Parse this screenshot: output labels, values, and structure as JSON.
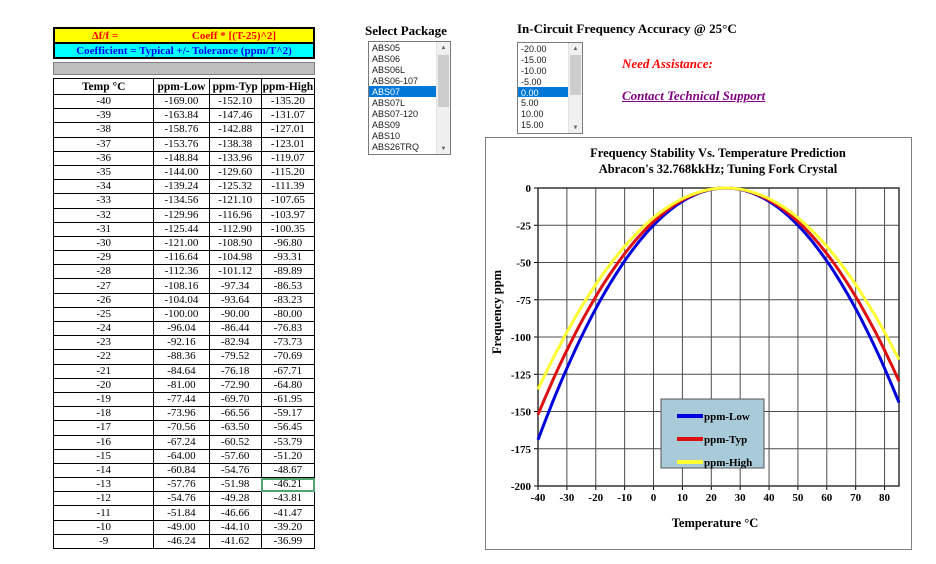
{
  "table": {
    "formula_left": "Δf/f =",
    "formula_right": "Coeff * [(T-25)^2]",
    "coefficient_note": "Coefficient = Typical +/- Tolerance (ppm/T^2)",
    "headers": [
      "Temp °C",
      "ppm-Low",
      "ppm-Typ",
      "ppm-High"
    ],
    "rows": [
      [
        "-40",
        "-169.00",
        "-152.10",
        "-135.20"
      ],
      [
        "-39",
        "-163.84",
        "-147.46",
        "-131.07"
      ],
      [
        "-38",
        "-158.76",
        "-142.88",
        "-127.01"
      ],
      [
        "-37",
        "-153.76",
        "-138.38",
        "-123.01"
      ],
      [
        "-36",
        "-148.84",
        "-133.96",
        "-119.07"
      ],
      [
        "-35",
        "-144.00",
        "-129.60",
        "-115.20"
      ],
      [
        "-34",
        "-139.24",
        "-125.32",
        "-111.39"
      ],
      [
        "-33",
        "-134.56",
        "-121.10",
        "-107.65"
      ],
      [
        "-32",
        "-129.96",
        "-116.96",
        "-103.97"
      ],
      [
        "-31",
        "-125.44",
        "-112.90",
        "-100.35"
      ],
      [
        "-30",
        "-121.00",
        "-108.90",
        "-96.80"
      ],
      [
        "-29",
        "-116.64",
        "-104.98",
        "-93.31"
      ],
      [
        "-28",
        "-112.36",
        "-101.12",
        "-89.89"
      ],
      [
        "-27",
        "-108.16",
        "-97.34",
        "-86.53"
      ],
      [
        "-26",
        "-104.04",
        "-93.64",
        "-83.23"
      ],
      [
        "-25",
        "-100.00",
        "-90.00",
        "-80.00"
      ],
      [
        "-24",
        "-96.04",
        "-86.44",
        "-76.83"
      ],
      [
        "-23",
        "-92.16",
        "-82.94",
        "-73.73"
      ],
      [
        "-22",
        "-88.36",
        "-79.52",
        "-70.69"
      ],
      [
        "-21",
        "-84.64",
        "-76.18",
        "-67.71"
      ],
      [
        "-20",
        "-81.00",
        "-72.90",
        "-64.80"
      ],
      [
        "-19",
        "-77.44",
        "-69.70",
        "-61.95"
      ],
      [
        "-18",
        "-73.96",
        "-66.56",
        "-59.17"
      ],
      [
        "-17",
        "-70.56",
        "-63.50",
        "-56.45"
      ],
      [
        "-16",
        "-67.24",
        "-60.52",
        "-53.79"
      ],
      [
        "-15",
        "-64.00",
        "-57.60",
        "-51.20"
      ],
      [
        "-14",
        "-60.84",
        "-54.76",
        "-48.67"
      ],
      [
        "-13",
        "-57.76",
        "-51.98",
        "-46.21"
      ],
      [
        "-12",
        "-54.76",
        "-49.28",
        "-43.81"
      ],
      [
        "-11",
        "-51.84",
        "-46.66",
        "-41.47"
      ],
      [
        "-10",
        "-49.00",
        "-44.10",
        "-39.20"
      ],
      [
        "-9",
        "-46.24",
        "-41.62",
        "-36.99"
      ]
    ],
    "selected_cell": {
      "row": 27,
      "col": 3
    }
  },
  "package_list": {
    "label": "Select Package",
    "options": [
      "ABS05",
      "ABS06",
      "ABS06L",
      "ABS06-107",
      "ABS07",
      "ABS07L",
      "ABS07-120",
      "ABS09",
      "ABS10",
      "ABS26TRQ"
    ],
    "selected": "ABS07"
  },
  "accuracy_list": {
    "label": "In-Circuit Frequency Accuracy @ 25°C",
    "options": [
      "-20.00",
      "-15.00",
      "-10.00",
      "-5.00",
      "0.00",
      "5.00",
      "10.00",
      "15.00"
    ],
    "selected": "0.00"
  },
  "assistance": {
    "heading": "Need Assistance:",
    "link": "Contact Technical Support"
  },
  "colors": {
    "formula_row_bg": "#ffff00",
    "formula_row_text": "#ff0000",
    "coefficient_row_bg": "#00ffff",
    "coefficient_row_text": "#0000ff",
    "listbox_selection": "#0078d7",
    "selected_cell_border": "#4ea56e",
    "legend_bg": "#a9cbd9",
    "link_purple": "#800080",
    "assist_red": "#ff0000"
  },
  "chart_data": {
    "type": "line",
    "title_line1": "Frequency Stability Vs. Temperature Prediction",
    "title_line2": "Abracon's 32.768kkHz; Tuning Fork Crystal",
    "xlabel": "Temperature °C",
    "ylabel": "Frequency ppm",
    "xlim": [
      -40,
      85
    ],
    "ylim": [
      -200,
      0
    ],
    "x_ticks": [
      -40,
      -30,
      -20,
      -10,
      0,
      10,
      20,
      30,
      40,
      50,
      60,
      70,
      80
    ],
    "y_ticks": [
      0,
      -25,
      -50,
      -75,
      -100,
      -125,
      -150,
      -175,
      -200
    ],
    "grid": true,
    "legend_position": "lower-center",
    "x_samples": [
      -40,
      -35,
      -30,
      -25,
      -20,
      -15,
      -10,
      -5,
      0,
      5,
      10,
      15,
      20,
      25,
      30,
      35,
      40,
      45,
      50,
      55,
      60,
      65,
      70,
      75,
      80,
      85
    ],
    "series": [
      {
        "name": "ppm-Low",
        "color": "#0000dd",
        "coeff": -0.04,
        "values": [
          -169,
          -144,
          -121,
          -100,
          -81,
          -64,
          -49,
          -36,
          -25,
          -16,
          -9,
          -4,
          -1,
          0,
          -1,
          -4,
          -9,
          -16,
          -25,
          -36,
          -49,
          -64,
          -81,
          -100,
          -121,
          -144
        ]
      },
      {
        "name": "ppm-Typ",
        "color": "#dd1111",
        "coeff": -0.036,
        "values": [
          -152.1,
          -129.6,
          -108.9,
          -90,
          -72.9,
          -57.6,
          -44.1,
          -32.4,
          -22.5,
          -14.4,
          -8.1,
          -3.6,
          -0.9,
          0,
          -0.9,
          -3.6,
          -8.1,
          -14.4,
          -22.5,
          -32.4,
          -44.1,
          -57.6,
          -72.9,
          -90,
          -108.9,
          -129.6
        ]
      },
      {
        "name": "ppm-High",
        "color": "#ffff33",
        "coeff": -0.032,
        "values": [
          -135.2,
          -115.2,
          -96.8,
          -80,
          -64.8,
          -51.2,
          -39.2,
          -28.8,
          -20,
          -12.8,
          -7.2,
          -3.2,
          -0.8,
          0,
          -0.8,
          -3.2,
          -7.2,
          -12.8,
          -20,
          -28.8,
          -39.2,
          -51.2,
          -64.8,
          -80,
          -96.8,
          -115.2
        ]
      }
    ]
  }
}
